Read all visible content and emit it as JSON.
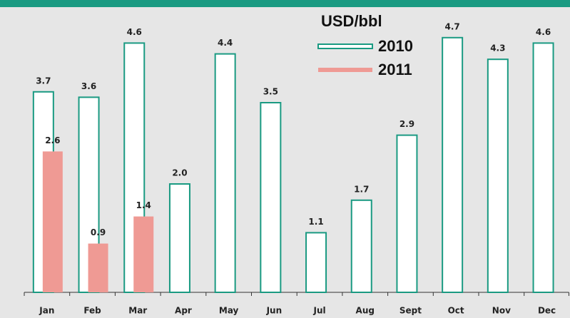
{
  "chart_data": {
    "type": "bar",
    "legend_title": "USD/bbl",
    "categories": [
      "Jan",
      "Feb",
      "Mar",
      "Apr",
      "May",
      "Jun",
      "Jul",
      "Aug",
      "Sept",
      "Oct",
      "Nov",
      "Dec"
    ],
    "series": [
      {
        "name": "2010",
        "color": "#ffffff",
        "edge_color": "#1a9a82",
        "values": [
          3.7,
          3.6,
          4.6,
          2.0,
          4.4,
          3.5,
          1.1,
          1.7,
          2.9,
          4.7,
          4.3,
          4.6
        ],
        "value_labels": [
          "3.7",
          "3.6",
          "4.6",
          "2.0",
          "4.4",
          "3.5",
          "1.1",
          "1.7",
          "2.9",
          "4.7",
          "4.3",
          "4.6"
        ]
      },
      {
        "name": "2011",
        "color": "#ef9a94",
        "values": [
          2.6,
          0.9,
          1.4,
          null,
          null,
          null,
          null,
          null,
          null,
          null,
          null,
          null
        ],
        "value_labels": [
          "2.6",
          "0.9",
          "1.4",
          null,
          null,
          null,
          null,
          null,
          null,
          null,
          null,
          null
        ]
      }
    ],
    "ylim": [
      0,
      5
    ],
    "grid": false
  }
}
